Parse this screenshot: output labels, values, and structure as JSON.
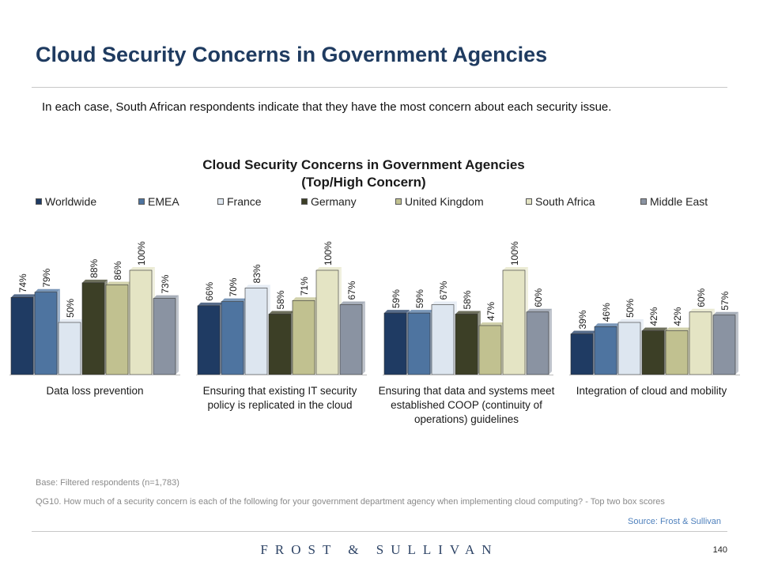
{
  "page": {
    "title": "Cloud Security Concerns in Government Agencies",
    "intro": "In each case, South African respondents indicate that they have the most concern about each security issue.",
    "base_note": "Base: Filtered respondents (n=1,783)",
    "question_note": "QG10. How much of a security concern is each of the following for your government department agency when implementing cloud computing? - Top two box scores",
    "source": "Source: Frost & Sullivan",
    "logo_text": "FROST & SULLIVAN",
    "page_number": "140"
  },
  "chart_data": {
    "type": "bar",
    "title_line1": "Cloud Security Concerns in Government Agencies",
    "title_line2": "(Top/High Concern)",
    "xlabel": "",
    "ylabel": "",
    "ylim": [
      0,
      100
    ],
    "grid": false,
    "legend_position": "top",
    "categories": [
      "Data loss prevention",
      "Ensuring that existing IT security policy is replicated in the cloud",
      "Ensuring that data and systems meet established COOP (continuity of operations) guidelines",
      "Integration of cloud and mobility"
    ],
    "series": [
      {
        "name": "Worldwide",
        "color": "#1f3b63",
        "values": [
          74,
          66,
          59,
          39
        ]
      },
      {
        "name": "EMEA",
        "color": "#4e74a0",
        "values": [
          79,
          70,
          59,
          46
        ]
      },
      {
        "name": "France",
        "color": "#dde6f0",
        "values": [
          50,
          83,
          67,
          50
        ]
      },
      {
        "name": "Germany",
        "color": "#3c3f26",
        "values": [
          88,
          58,
          58,
          42
        ]
      },
      {
        "name": "United Kingdom",
        "color": "#c1c190",
        "values": [
          86,
          71,
          47,
          42
        ]
      },
      {
        "name": "South Africa",
        "color": "#e4e4c4",
        "values": [
          100,
          100,
          100,
          60
        ]
      },
      {
        "name": "Middle East",
        "color": "#8a93a2",
        "values": [
          73,
          67,
          60,
          57
        ]
      }
    ]
  }
}
